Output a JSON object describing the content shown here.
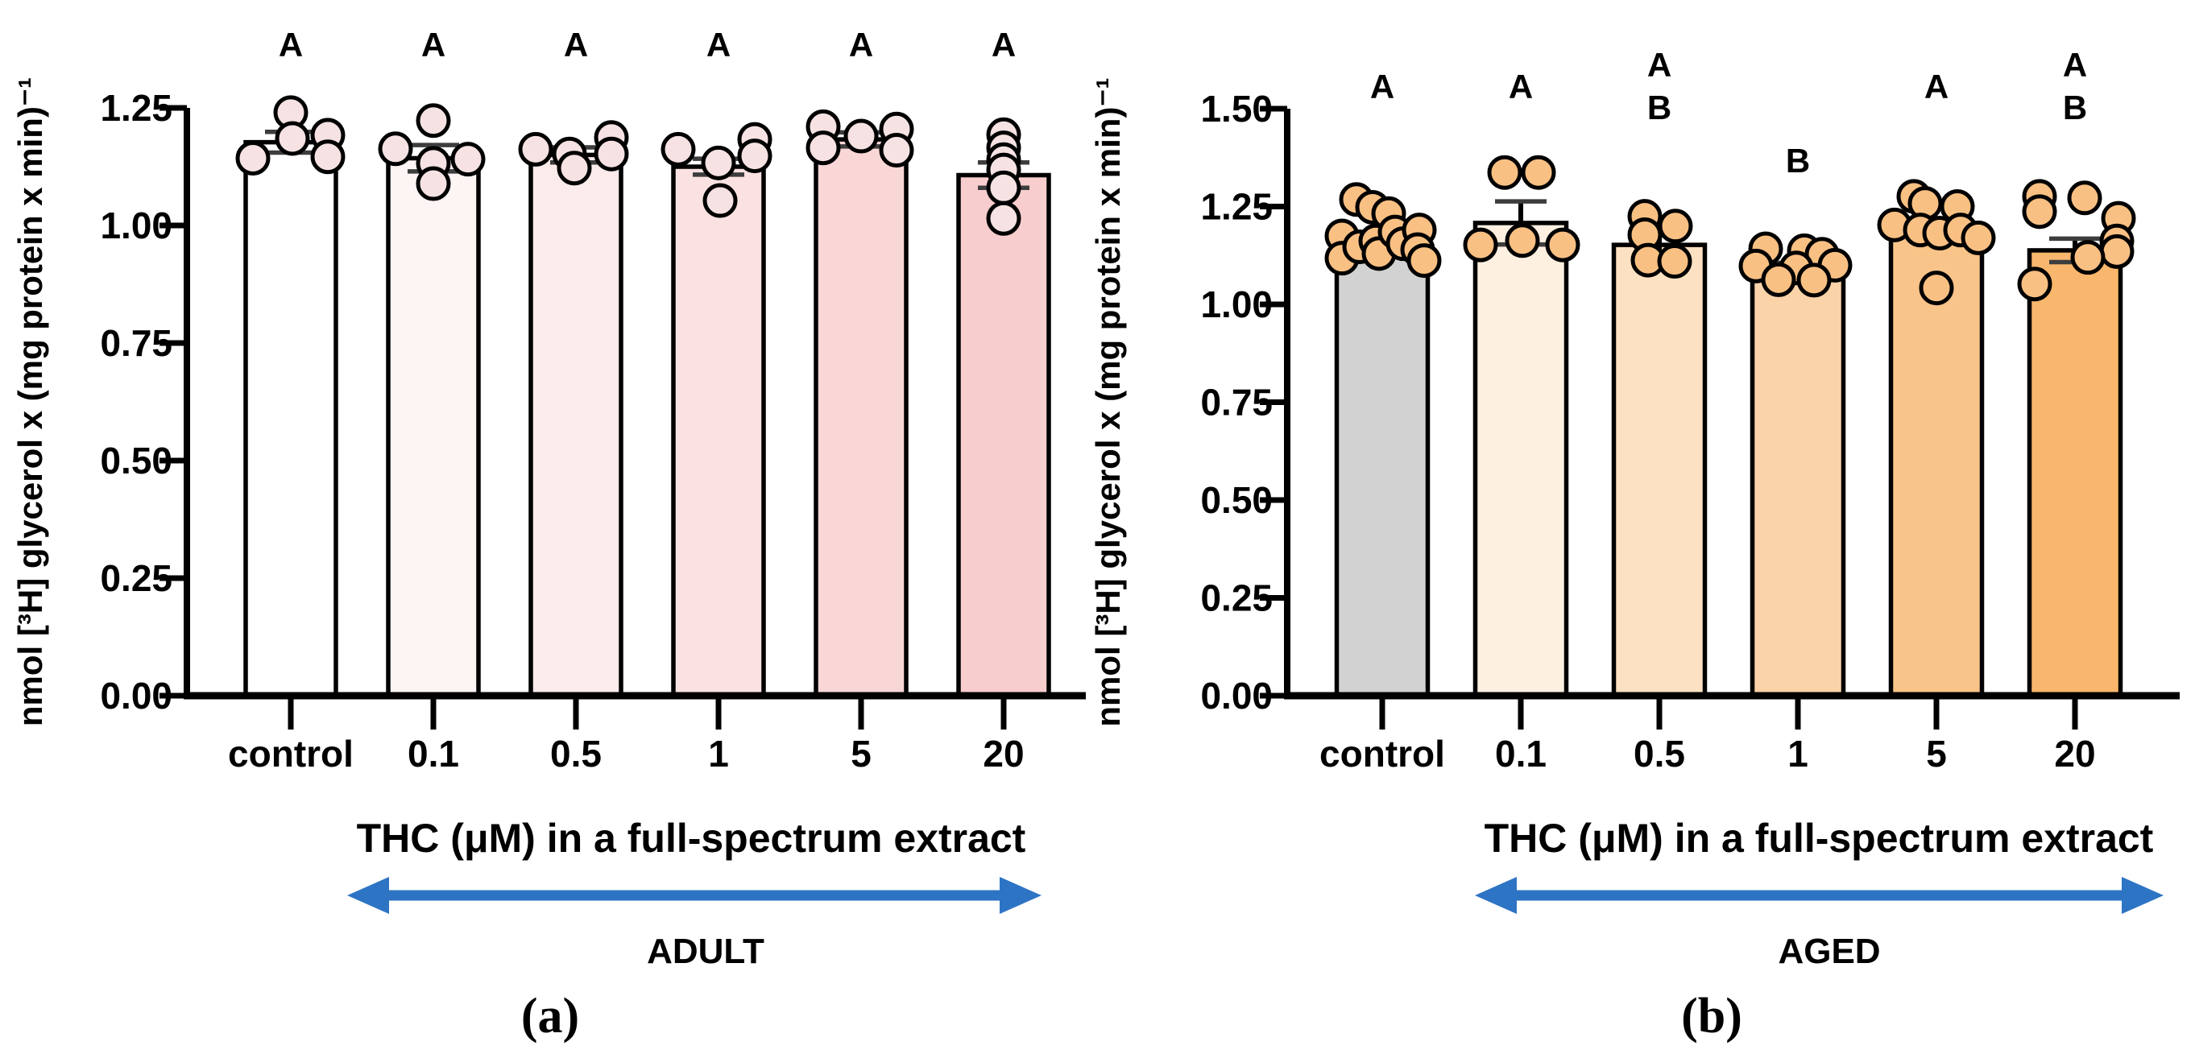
{
  "figure_colors": {
    "background": "#ffffff",
    "axis": "#000000",
    "point_stroke": "#000000",
    "error_cap": "#3d3d3d",
    "arrow": "#2e74c4"
  },
  "chart_data": [
    {
      "type": "bar",
      "panel_tag": "(a)",
      "group_label": "ADULT",
      "xlabel": "THC (μM) in a full-spectrum extract",
      "ylabel": "nmol [³H] glycerol x (mg protein x min)⁻¹",
      "ylim": [
        0,
        1.25
      ],
      "yticks": [
        "0.00",
        "0.25",
        "0.50",
        "0.75",
        "1.00",
        "1.25"
      ],
      "grid": false,
      "legend": "none",
      "categories": [
        "control",
        "0.1",
        "0.5",
        "1",
        "5",
        "20"
      ],
      "point_fill": "#f6e2e2",
      "bars": [
        {
          "category": "control",
          "fill": "#ffffff",
          "mean": 1.177,
          "sem": 0.022,
          "letters": [
            {
              "text": "A",
              "y": 70
            }
          ],
          "points": [
            {
              "dx": -47,
              "v": 1.143
            },
            {
              "dx": 0,
              "v": 1.24
            },
            {
              "dx": 2,
              "v": 1.185
            },
            {
              "dx": 46,
              "v": 1.192
            },
            {
              "dx": 46,
              "v": 1.146
            }
          ]
        },
        {
          "category": "0.1",
          "fill": "#fdf4f4",
          "mean": 1.143,
          "sem": 0.028,
          "letters": [
            {
              "text": "A",
              "y": 70
            }
          ],
          "points": [
            {
              "dx": -47,
              "v": 1.163
            },
            {
              "dx": 0,
              "v": 1.223
            },
            {
              "dx": 0,
              "v": 1.132
            },
            {
              "dx": 0,
              "v": 1.089
            },
            {
              "dx": 43,
              "v": 1.141
            }
          ]
        },
        {
          "category": "0.5",
          "fill": "#fcebeb",
          "mean": 1.15,
          "sem": 0.016,
          "letters": [
            {
              "text": "A",
              "y": 70
            }
          ],
          "points": [
            {
              "dx": -50,
              "v": 1.162
            },
            {
              "dx": -8,
              "v": 1.152
            },
            {
              "dx": -2,
              "v": 1.122
            },
            {
              "dx": 44,
              "v": 1.187
            },
            {
              "dx": 44,
              "v": 1.152
            }
          ]
        },
        {
          "category": "1",
          "fill": "#fbe2e2",
          "mean": 1.125,
          "sem": 0.017,
          "letters": [
            {
              "text": "A",
              "y": 70
            }
          ],
          "points": [
            {
              "dx": -50,
              "v": 1.162
            },
            {
              "dx": 0,
              "v": 1.133
            },
            {
              "dx": 2,
              "v": 1.053
            },
            {
              "dx": 45,
              "v": 1.183
            },
            {
              "dx": 45,
              "v": 1.148
            }
          ]
        },
        {
          "category": "5",
          "fill": "#f9d7d7",
          "mean": 1.183,
          "sem": 0.015,
          "letters": [
            {
              "text": "A",
              "y": 70
            }
          ],
          "points": [
            {
              "dx": -47,
              "v": 1.21
            },
            {
              "dx": -47,
              "v": 1.165
            },
            {
              "dx": 0,
              "v": 1.19
            },
            {
              "dx": 44,
              "v": 1.205
            },
            {
              "dx": 44,
              "v": 1.16
            }
          ]
        },
        {
          "category": "20",
          "fill": "#f8cdcd",
          "mean": 1.107,
          "sem": 0.027,
          "letters": [
            {
              "text": "A",
              "y": 70
            }
          ],
          "points": [
            {
              "dx": 0,
              "v": 1.193
            },
            {
              "dx": 0,
              "v": 1.165
            },
            {
              "dx": 0,
              "v": 1.14
            },
            {
              "dx": 0,
              "v": 1.118
            },
            {
              "dx": 0,
              "v": 1.08
            },
            {
              "dx": 0,
              "v": 1.015
            }
          ]
        }
      ]
    },
    {
      "type": "bar",
      "panel_tag": "(b)",
      "group_label": "AGED",
      "xlabel": "THC (μM) in a full-spectrum extract",
      "ylabel": "nmol [³H] glycerol x (mg protein x min)⁻¹",
      "ylim": [
        0,
        1.5
      ],
      "yticks": [
        "0.00",
        "0.25",
        "0.50",
        "0.75",
        "1.00",
        "1.25",
        "1.50"
      ],
      "grid": false,
      "legend": "none",
      "categories": [
        "control",
        "0.1",
        "0.5",
        "1",
        "5",
        "20"
      ],
      "point_fill": "#f9c083",
      "bars": [
        {
          "category": "control",
          "fill": "#d2d2d2",
          "mean": 1.165,
          "sem": 0.012,
          "letters": [
            {
              "text": "A",
              "y": 122
            }
          ],
          "points": [
            {
              "dx": -50,
              "v": 1.175
            },
            {
              "dx": -50,
              "v": 1.118
            },
            {
              "dx": -32,
              "v": 1.268
            },
            {
              "dx": -28,
              "v": 1.147
            },
            {
              "dx": -12,
              "v": 1.248
            },
            {
              "dx": -8,
              "v": 1.162
            },
            {
              "dx": 8,
              "v": 1.232
            },
            {
              "dx": -4,
              "v": 1.13
            },
            {
              "dx": 16,
              "v": 1.185
            },
            {
              "dx": 26,
              "v": 1.155
            },
            {
              "dx": 46,
              "v": 1.19
            },
            {
              "dx": 44,
              "v": 1.14
            },
            {
              "dx": 52,
              "v": 1.112
            }
          ]
        },
        {
          "category": "0.1",
          "fill": "#fdf0e1",
          "mean": 1.208,
          "sem": 0.055,
          "letters": [
            {
              "text": "A",
              "y": 122
            }
          ],
          "points": [
            {
              "dx": -20,
              "v": 1.337
            },
            {
              "dx": 22,
              "v": 1.337
            },
            {
              "dx": -50,
              "v": 1.152
            },
            {
              "dx": 2,
              "v": 1.163
            },
            {
              "dx": 52,
              "v": 1.152
            }
          ]
        },
        {
          "category": "0.5",
          "fill": "#fce1c2",
          "mean": 1.152,
          "sem": 0.024,
          "letters": [
            {
              "text": "A",
              "y": 95
            },
            {
              "text": "B",
              "y": 148
            }
          ],
          "points": [
            {
              "dx": -18,
              "v": 1.225
            },
            {
              "dx": -18,
              "v": 1.178
            },
            {
              "dx": 20,
              "v": 1.2
            },
            {
              "dx": -14,
              "v": 1.113
            },
            {
              "dx": 19,
              "v": 1.11
            }
          ]
        },
        {
          "category": "1",
          "fill": "#fbd3a9",
          "mean": 1.093,
          "sem": 0.013,
          "letters": [
            {
              "text": "B",
              "y": 214
            }
          ],
          "points": [
            {
              "dx": -40,
              "v": 1.142
            },
            {
              "dx": 8,
              "v": 1.137
            },
            {
              "dx": 30,
              "v": 1.128
            },
            {
              "dx": -52,
              "v": 1.098
            },
            {
              "dx": -2,
              "v": 1.093
            },
            {
              "dx": 46,
              "v": 1.1
            },
            {
              "dx": -24,
              "v": 1.063
            },
            {
              "dx": 20,
              "v": 1.062
            }
          ]
        },
        {
          "category": "5",
          "fill": "#f9c489",
          "mean": 1.18,
          "sem": 0.02,
          "letters": [
            {
              "text": "A",
              "y": 122
            }
          ],
          "points": [
            {
              "dx": -28,
              "v": 1.276
            },
            {
              "dx": -14,
              "v": 1.258
            },
            {
              "dx": 26,
              "v": 1.25
            },
            {
              "dx": -52,
              "v": 1.203
            },
            {
              "dx": -20,
              "v": 1.19
            },
            {
              "dx": 4,
              "v": 1.182
            },
            {
              "dx": 30,
              "v": 1.19
            },
            {
              "dx": 52,
              "v": 1.17
            },
            {
              "dx": 0,
              "v": 1.042
            }
          ]
        },
        {
          "category": "20",
          "fill": "#f8b76d",
          "mean": 1.138,
          "sem": 0.03,
          "letters": [
            {
              "text": "A",
              "y": 95
            },
            {
              "text": "B",
              "y": 148
            }
          ],
          "points": [
            {
              "dx": -44,
              "v": 1.276
            },
            {
              "dx": -44,
              "v": 1.237
            },
            {
              "dx": 12,
              "v": 1.272
            },
            {
              "dx": 54,
              "v": 1.22
            },
            {
              "dx": 52,
              "v": 1.162
            },
            {
              "dx": 52,
              "v": 1.135
            },
            {
              "dx": 16,
              "v": 1.12
            },
            {
              "dx": -50,
              "v": 1.052
            }
          ]
        }
      ]
    }
  ]
}
